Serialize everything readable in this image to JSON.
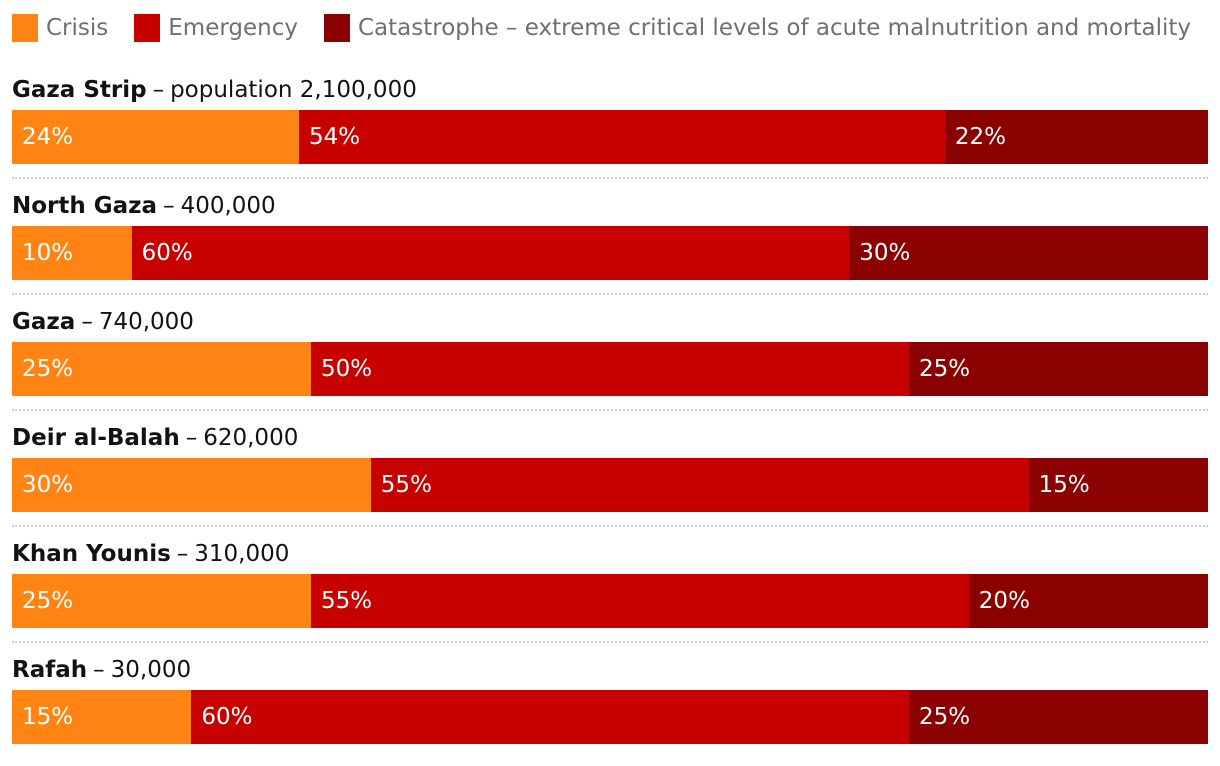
{
  "legend": [
    {
      "label": "Crisis",
      "color": "#ff8413"
    },
    {
      "label": "Emergency",
      "color": "#c70000"
    },
    {
      "label": "Catastrophe – extreme critical levels of acute malnutrition and mortality",
      "color": "#8b0000"
    }
  ],
  "chart_data": {
    "type": "bar",
    "stacked": true,
    "orientation": "horizontal",
    "value_unit": "%",
    "categories": [
      "Gaza Strip",
      "North Gaza",
      "Gaza",
      "Deir al-Balah",
      "Khan Younis",
      "Rafah"
    ],
    "category_details": [
      "population 2,100,000",
      "400,000",
      "740,000",
      "620,000",
      "310,000",
      "30,000"
    ],
    "series": [
      {
        "name": "Crisis",
        "color": "#ff8413",
        "values": [
          24,
          10,
          25,
          30,
          25,
          15
        ]
      },
      {
        "name": "Emergency",
        "color": "#c70000",
        "values": [
          54,
          60,
          50,
          55,
          55,
          60
        ]
      },
      {
        "name": "Catastrophe – extreme critical levels of acute malnutrition and mortality",
        "color": "#8b0000",
        "values": [
          22,
          30,
          25,
          15,
          20,
          25
        ]
      }
    ],
    "xlim": [
      0,
      100
    ],
    "legend_position": "top-left",
    "grid": false
  }
}
